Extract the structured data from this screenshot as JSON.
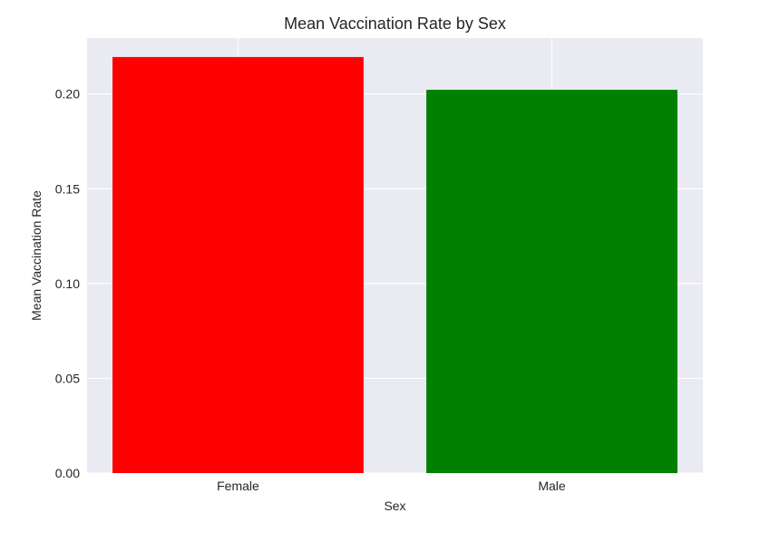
{
  "chart_data": {
    "type": "bar",
    "title": "Mean Vaccination Rate by Sex",
    "xlabel": "Sex",
    "ylabel": "Mean Vaccination Rate",
    "categories": [
      "Female",
      "Male"
    ],
    "values": [
      0.2195,
      0.2022
    ],
    "colors": [
      "#ff0000",
      "#008000"
    ],
    "ylim": [
      0,
      0.2295
    ],
    "yticks": [
      0.0,
      0.05,
      0.1,
      0.15,
      0.2
    ],
    "ytick_labels": [
      "0.00",
      "0.05",
      "0.10",
      "0.15",
      "0.20"
    ],
    "grid": true,
    "background": "#eaeaf2"
  }
}
